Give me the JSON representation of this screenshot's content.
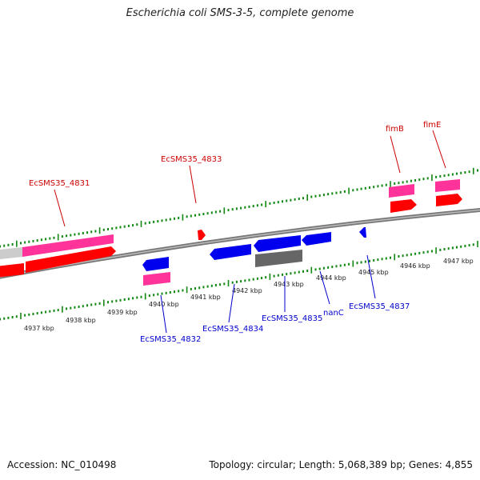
{
  "title": "Escherichia coli SMS-3-5, complete genome",
  "footer": {
    "accession": "Accession: NC_010498",
    "summary": "Topology: circular; Length: 5,068,389 bp; Genes: 4,855"
  },
  "colors": {
    "forward_cds": "#ff0000",
    "forward_gene": "#ff3399",
    "reverse_cds": "#0000ee",
    "reverse_gene": "#ff3399",
    "pseudo": "#666666",
    "forward_label": "#cc0000",
    "reverse_label": "#0000cc",
    "ticks": "#118811",
    "backbone": "#777777"
  },
  "scale_labels": [
    "4937 kbp",
    "4938 kbp",
    "4939 kbp",
    "4940 kbp",
    "4941 kbp",
    "4942 kbp",
    "4943 kbp",
    "4944 kbp",
    "4945 kbp",
    "4946 kbp",
    "4947 kbp"
  ],
  "forward_genes": [
    {
      "name": "EcSMS35_4831"
    },
    {
      "name": "EcSMS35_4833"
    },
    {
      "name": "fimB"
    },
    {
      "name": "fimE"
    }
  ],
  "reverse_genes": [
    {
      "name": "EcSMS35_4832"
    },
    {
      "name": "EcSMS35_4834"
    },
    {
      "name": "EcSMS35_4835"
    },
    {
      "name": "nanC"
    },
    {
      "name": "EcSMS35_4837"
    }
  ]
}
